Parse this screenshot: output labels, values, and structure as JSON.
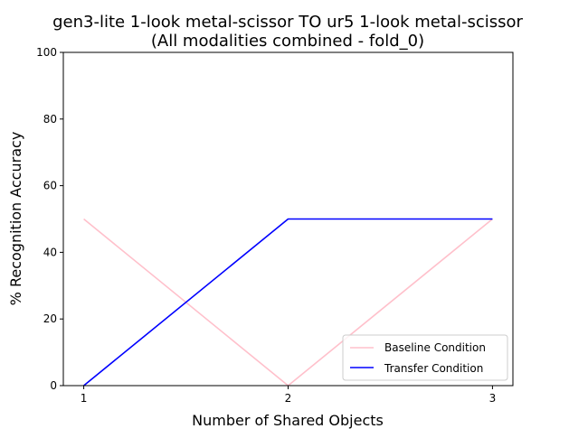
{
  "chart_data": {
    "type": "line",
    "title_line1": "gen3-lite 1-look metal-scissor TO ur5 1-look metal-scissor",
    "title_line2": "(All modalities combined - fold_0)",
    "xlabel": "Number of Shared Objects",
    "ylabel": "% Recognition Accuracy",
    "x": [
      1,
      2,
      3
    ],
    "x_ticks": [
      "1",
      "2",
      "3"
    ],
    "xlim": [
      0.9,
      3.1
    ],
    "ylim": [
      0,
      100
    ],
    "y_ticks": [
      "0",
      "20",
      "40",
      "60",
      "80",
      "100"
    ],
    "grid": false,
    "legend_position": "lower-right",
    "series": [
      {
        "name": "Baseline Condition",
        "values": [
          50,
          0,
          50
        ],
        "color": "#ffc0cb"
      },
      {
        "name": "Transfer Condition",
        "values": [
          0,
          50,
          50
        ],
        "color": "#0000ff"
      }
    ]
  }
}
